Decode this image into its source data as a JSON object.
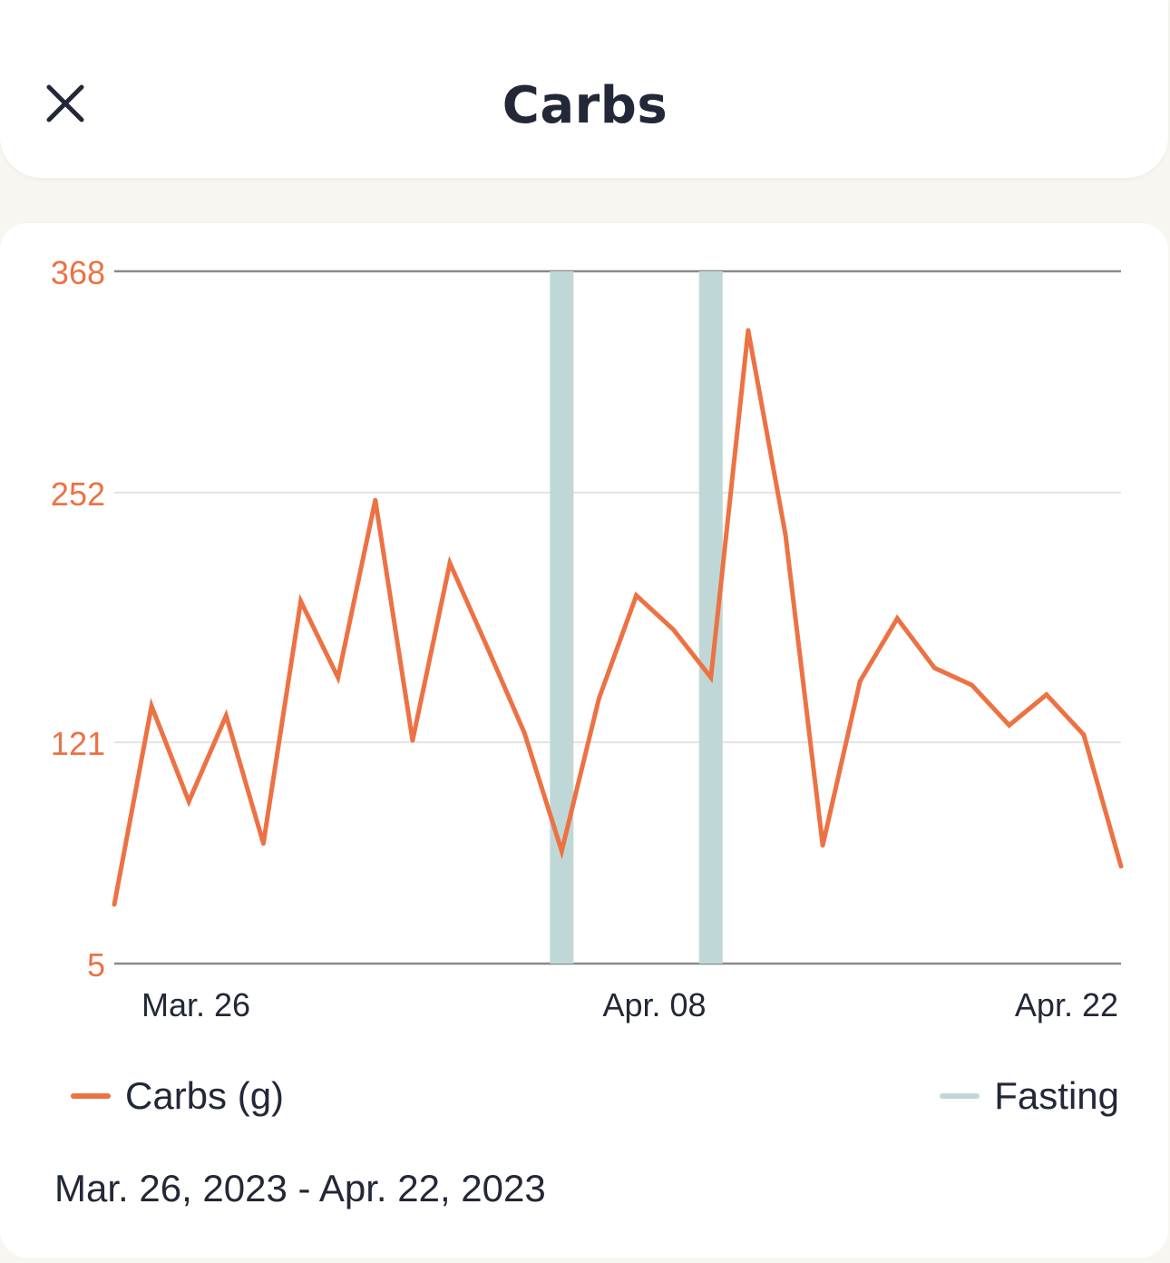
{
  "header": {
    "title": "Carbs"
  },
  "chart_data": {
    "type": "line",
    "x_range": [
      "Mar. 25",
      "Apr. 22"
    ],
    "x_tick_labels": [
      "Mar. 26",
      "Apr. 08",
      "Apr. 22"
    ],
    "y_ticks": [
      5,
      121,
      252,
      368
    ],
    "ylim": [
      5,
      368
    ],
    "grid": true,
    "series": [
      {
        "name": "Carbs (g)",
        "color": "#ec7244",
        "values": [
          36,
          140,
          90,
          135,
          68,
          195,
          155,
          248,
          122,
          215,
          171,
          126,
          64,
          144,
          198,
          180,
          155,
          337,
          230,
          67,
          153,
          186,
          160,
          151,
          130,
          146,
          125,
          56
        ]
      },
      {
        "name": "Fasting",
        "color": "#bfd8d7",
        "type": "band",
        "days": [
          "Apr. 06",
          "Apr. 10"
        ]
      }
    ],
    "legend_position": "bottom"
  },
  "legend": {
    "carbs_label": "Carbs (g)",
    "fasting_label": "Fasting"
  },
  "date_range": "Mar. 26, 2023 - Apr. 22, 2023",
  "colors": {
    "carbs": "#ec7244",
    "fasting": "#bfd8d7",
    "text": "#232838",
    "axis_label": "#ec7244"
  }
}
